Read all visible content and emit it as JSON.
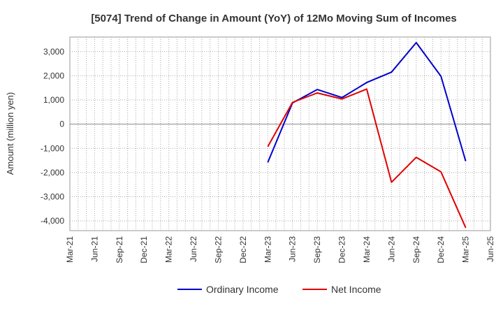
{
  "chart_data": {
    "type": "line",
    "title": "[5074]  Trend of Change in Amount (YoY) of 12Mo Moving Sum of Incomes",
    "xlabel": "",
    "ylabel": "Amount (million yen)",
    "ylim": [
      -4400,
      3600
    ],
    "yticks": [
      3000,
      2000,
      1000,
      0,
      -1000,
      -2000,
      -3000,
      -4000
    ],
    "ytick_labels": [
      "3,000",
      "2,000",
      "1,000",
      "0",
      "-1,000",
      "-2,000",
      "-3,000",
      "-4,000"
    ],
    "categories": [
      "Mar-21",
      "Jun-21",
      "Sep-21",
      "Dec-21",
      "Mar-22",
      "Jun-22",
      "Sep-22",
      "Dec-22",
      "Mar-23",
      "Jun-23",
      "Sep-23",
      "Dec-23",
      "Mar-24",
      "Jun-24",
      "Sep-24",
      "Dec-24",
      "Mar-25",
      "Jun-25"
    ],
    "grid": true,
    "legend_position": "bottom",
    "series": [
      {
        "name": "Ordinary Income",
        "color": "#0000cc",
        "values": [
          null,
          null,
          null,
          null,
          null,
          null,
          null,
          null,
          -1580,
          880,
          1430,
          1100,
          1720,
          2150,
          3370,
          1980,
          -1530,
          null
        ]
      },
      {
        "name": "Net Income",
        "color": "#e00000",
        "values": [
          null,
          null,
          null,
          null,
          null,
          null,
          null,
          null,
          -930,
          900,
          1290,
          1040,
          1450,
          -2400,
          -1370,
          -1970,
          -4280,
          null
        ]
      }
    ]
  }
}
